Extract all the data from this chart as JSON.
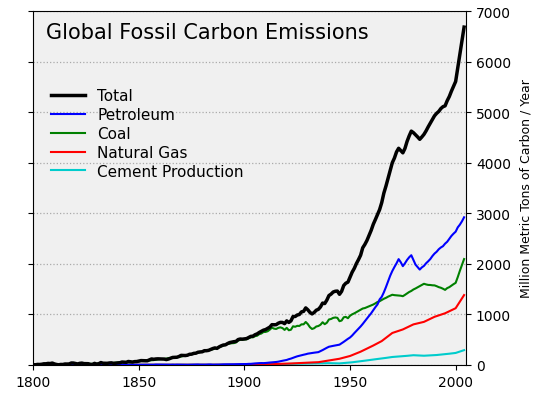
{
  "title": "Global Fossil Carbon Emissions",
  "ylabel": "Million Metric Tons of Carbon / Year",
  "xlim": [
    1800,
    2005
  ],
  "ylim": [
    0,
    7000
  ],
  "yticks": [
    0,
    1000,
    2000,
    3000,
    4000,
    5000,
    6000,
    7000
  ],
  "xticks": [
    1800,
    1850,
    1900,
    1950,
    2000
  ],
  "legend": [
    {
      "label": "Total",
      "color": "#000000",
      "lw": 2.5
    },
    {
      "label": "Petroleum",
      "color": "#0000ff",
      "lw": 1.5
    },
    {
      "label": "Coal",
      "color": "#008000",
      "lw": 1.5
    },
    {
      "label": "Natural Gas",
      "color": "#ff0000",
      "lw": 1.5
    },
    {
      "label": "Cement Production",
      "color": "#00cccc",
      "lw": 1.5
    }
  ],
  "background_color": "#ffffff",
  "plot_bg_color": "#f0f0f0",
  "grid_color": "#aaaaaa",
  "title_fontsize": 15,
  "legend_fontsize": 11,
  "tick_fontsize": 10
}
